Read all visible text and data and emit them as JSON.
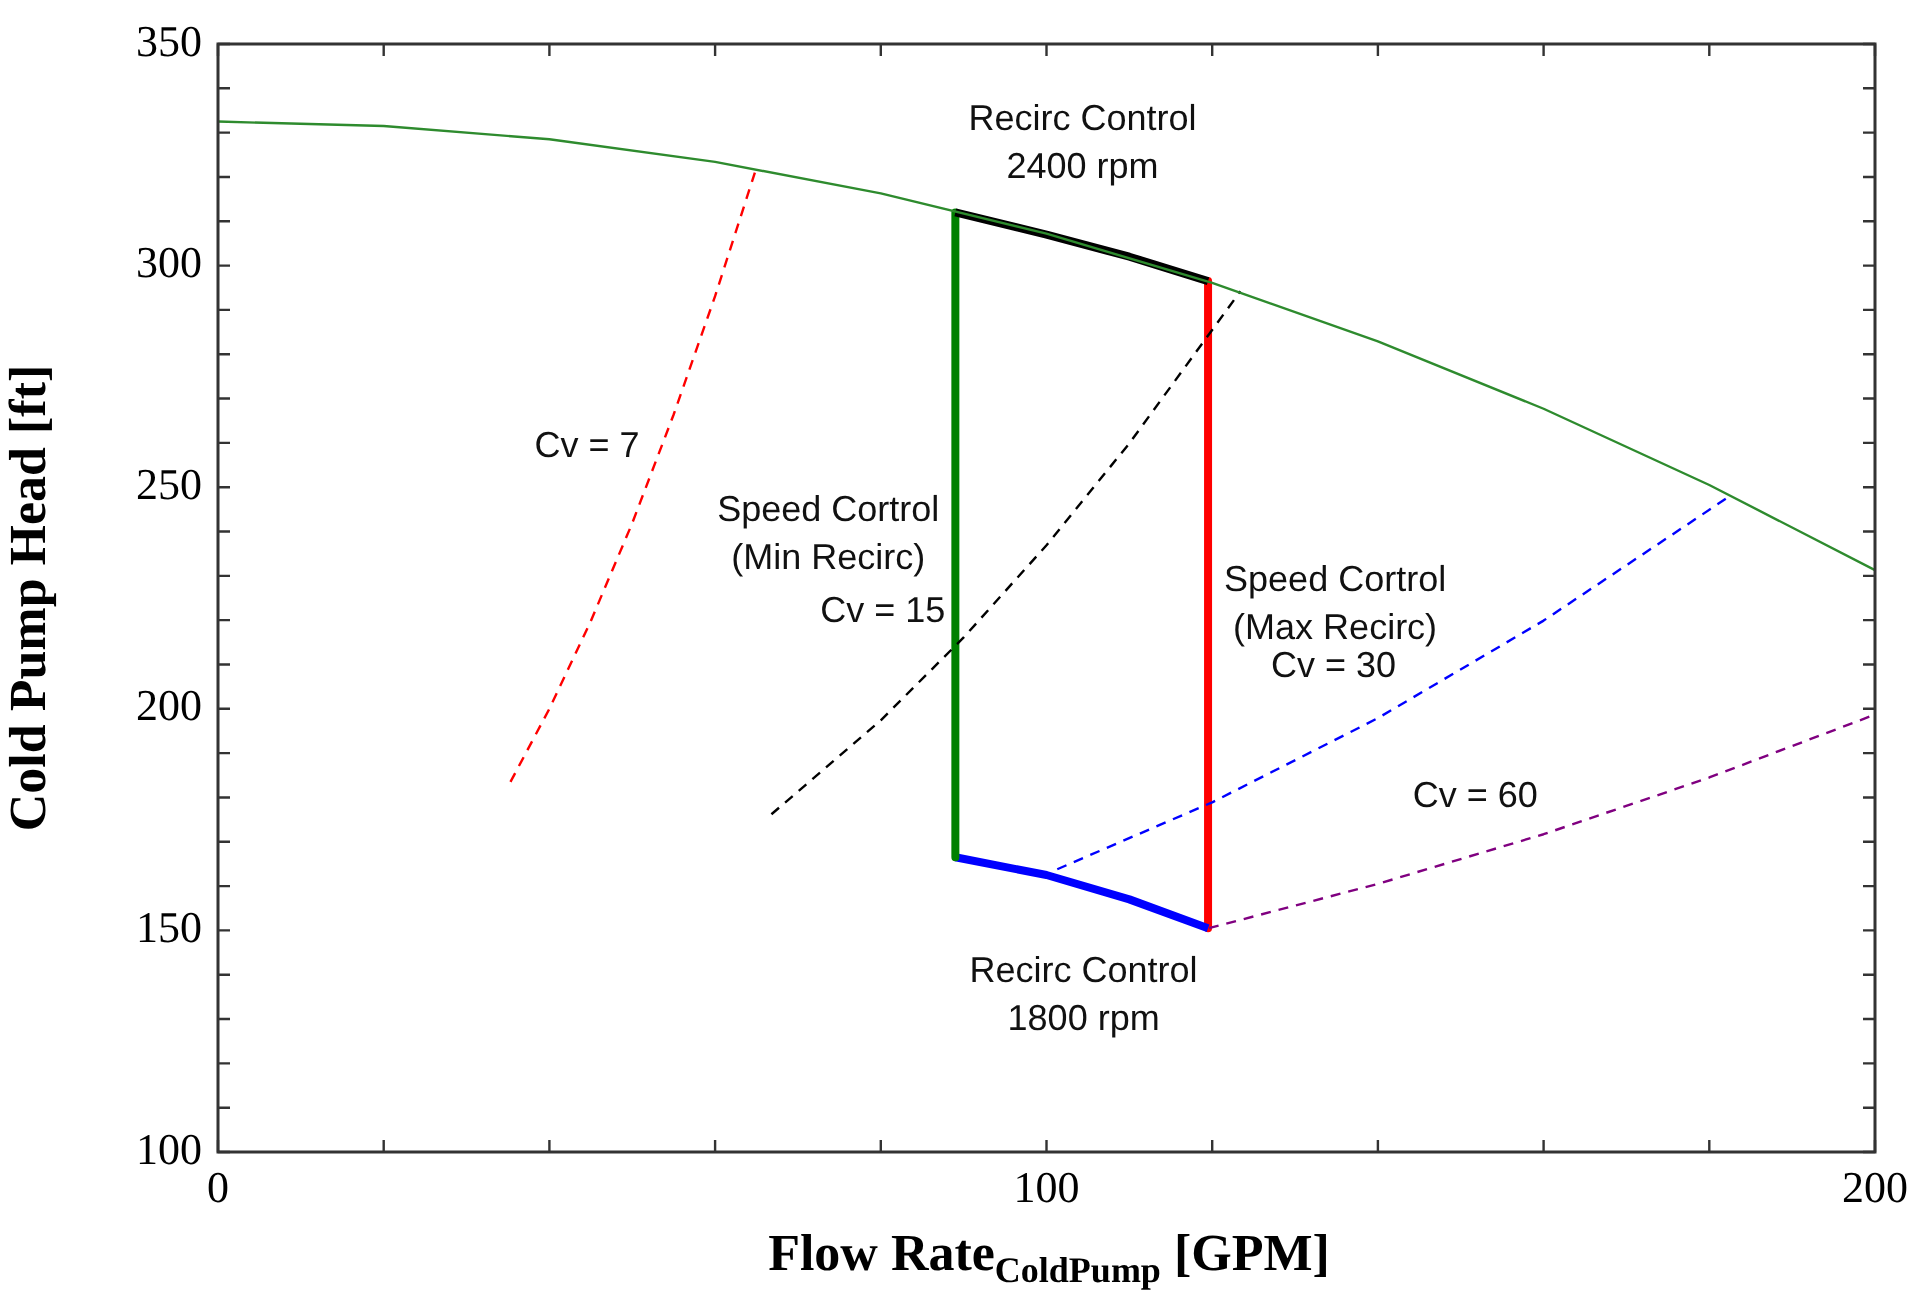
{
  "chart_data": {
    "type": "line",
    "xlabel": "Flow Rate$_{ColdPump}$ [GPM]",
    "ylabel": "Cold Pump Head [ft]",
    "xlim": [
      0,
      200
    ],
    "ylim": [
      100,
      350
    ],
    "xticks": [
      0,
      {
        "value": 20,
        "label": null
      },
      {
        "value": 40,
        "label": null
      },
      {
        "value": 60,
        "label": null
      },
      {
        "value": 80,
        "label": null
      },
      100,
      {
        "value": 120,
        "label": null
      },
      {
        "value": 140,
        "label": null
      },
      {
        "value": 160,
        "label": null
      },
      {
        "value": 180,
        "label": null
      },
      200
    ],
    "yticks": [
      100,
      {
        "value": 110,
        "label": null
      },
      {
        "value": 120,
        "label": null
      },
      {
        "value": 130,
        "label": null
      },
      {
        "value": 140,
        "label": null
      },
      150,
      {
        "value": 160,
        "label": null
      },
      {
        "value": 170,
        "label": null
      },
      {
        "value": 180,
        "label": null
      },
      {
        "value": 190,
        "label": null
      },
      200,
      {
        "value": 210,
        "label": null
      },
      {
        "value": 220,
        "label": null
      },
      {
        "value": 230,
        "label": null
      },
      {
        "value": 240,
        "label": null
      },
      250,
      {
        "value": 260,
        "label": null
      },
      {
        "value": 270,
        "label": null
      },
      {
        "value": 280,
        "label": null
      },
      {
        "value": 290,
        "label": null
      },
      300,
      {
        "value": 310,
        "label": null
      },
      {
        "value": 320,
        "label": null
      },
      {
        "value": 330,
        "label": null
      },
      {
        "value": 340,
        "label": null
      },
      350
    ],
    "grid": false,
    "legend": false,
    "marker": "none",
    "series": [
      {
        "color": "#2e8b2e",
        "line_style": "solid",
        "x": [
          0,
          20,
          40,
          60,
          80,
          100,
          120,
          140,
          160,
          180,
          200
        ],
        "values": [
          332.5,
          331.5,
          328.5,
          323.4,
          316.3,
          307.2,
          296.1,
          282.9,
          267.7,
          250.5,
          231.3
        ]
      },
      {
        "name": "Cv = 7",
        "color": "#ff0000",
        "line_style": "dashed",
        "x": [
          35.3,
          40,
          45,
          50,
          55,
          60,
          64.8
        ],
        "values": [
          183.5,
          200,
          219.8,
          241.9,
          266.4,
          293.1,
          321
        ]
      },
      {
        "name": "Cv = 15",
        "color": "#000000",
        "line_style": "dashed",
        "x": [
          66.8,
          80,
          90,
          100,
          110,
          123.4
        ],
        "values": [
          176.2,
          197.4,
          216.1,
          236.9,
          259.9,
          294.2
        ]
      },
      {
        "name": "Cv = 30",
        "color": "#0000ff",
        "line_style": "dashed",
        "x": [
          101.3,
          120,
          140,
          160,
          182.4
        ],
        "values": [
          163.8,
          178.9,
          197.9,
          219.9,
          247.9
        ]
      },
      {
        "name": "Cv = 60",
        "color": "#800080",
        "line_style": "dashed",
        "x": [
          119.6,
          140,
          160,
          180,
          200
        ],
        "values": [
          150.5,
          160.5,
          171.7,
          184.5,
          198.7
        ]
      },
      {
        "name": "Recirc Control 2400 rpm",
        "color": "#000000",
        "line_style": "solid",
        "x": [
          89,
          100,
          110,
          119.5
        ],
        "values": [
          312,
          307,
          302,
          296.5
        ]
      },
      {
        "name": "Speed Cortrol (Min Recirc)",
        "color": "#008000",
        "line_style": "solid",
        "x": [
          89,
          89
        ],
        "values": [
          312,
          166.5
        ]
      },
      {
        "name": "Recirc Control 1800 rpm",
        "color": "#0000ff",
        "line_style": "solid",
        "x": [
          89,
          100,
          110,
          119.5
        ],
        "values": [
          166.5,
          162.5,
          157,
          150.5
        ]
      },
      {
        "name": "Speed Cortrol (Max Recirc)",
        "color": "#ff0000",
        "line_style": "solid",
        "x": [
          119.5,
          119.5
        ],
        "values": [
          296.5,
          150.5
        ]
      }
    ]
  }
}
